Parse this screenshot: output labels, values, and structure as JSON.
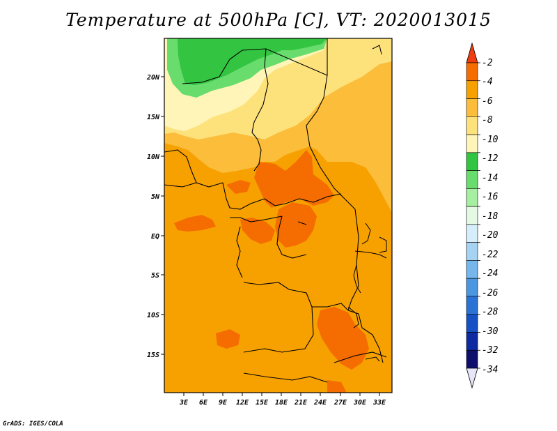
{
  "title": "Temperature at 500hPa [C], VT: 2020013015",
  "credit": "GrADS: IGES/COLA",
  "map": {
    "lat_labels": [
      "20N",
      "15N",
      "10N",
      "5N",
      "EQ",
      "5S",
      "10S",
      "15S"
    ],
    "lon_labels": [
      "3E",
      "6E",
      "9E",
      "12E",
      "15E",
      "18E",
      "21E",
      "24E",
      "27E",
      "30E",
      "33E"
    ]
  },
  "colorbar": {
    "labels": [
      "-2",
      "-4",
      "-6",
      "-8",
      "-10",
      "-12",
      "-14",
      "-16",
      "-18",
      "-20",
      "-22",
      "-24",
      "-26",
      "-28",
      "-30",
      "-32",
      "-34"
    ],
    "colors": [
      "#ee3d10",
      "#f56c00",
      "#f7a100",
      "#fbbd3a",
      "#fde27c",
      "#fff5b8",
      "#33c441",
      "#68dc6c",
      "#a5efa0",
      "#e3f9e3",
      "#d6eefb",
      "#a6d3f1",
      "#76b6eb",
      "#4a96e1",
      "#2a73d4",
      "#1550c5",
      "#0d2aa0",
      "#0e0e6c",
      "#e6e6f8"
    ]
  },
  "field_colors": {
    "green_dark": "#33c441",
    "green_mid": "#68dc6c",
    "pale_yellow": "#fff5b8",
    "light_yellow": "#fde27c",
    "light_orange": "#fbbd3a",
    "orange": "#f7a100",
    "dark_orange": "#f56c00"
  }
}
